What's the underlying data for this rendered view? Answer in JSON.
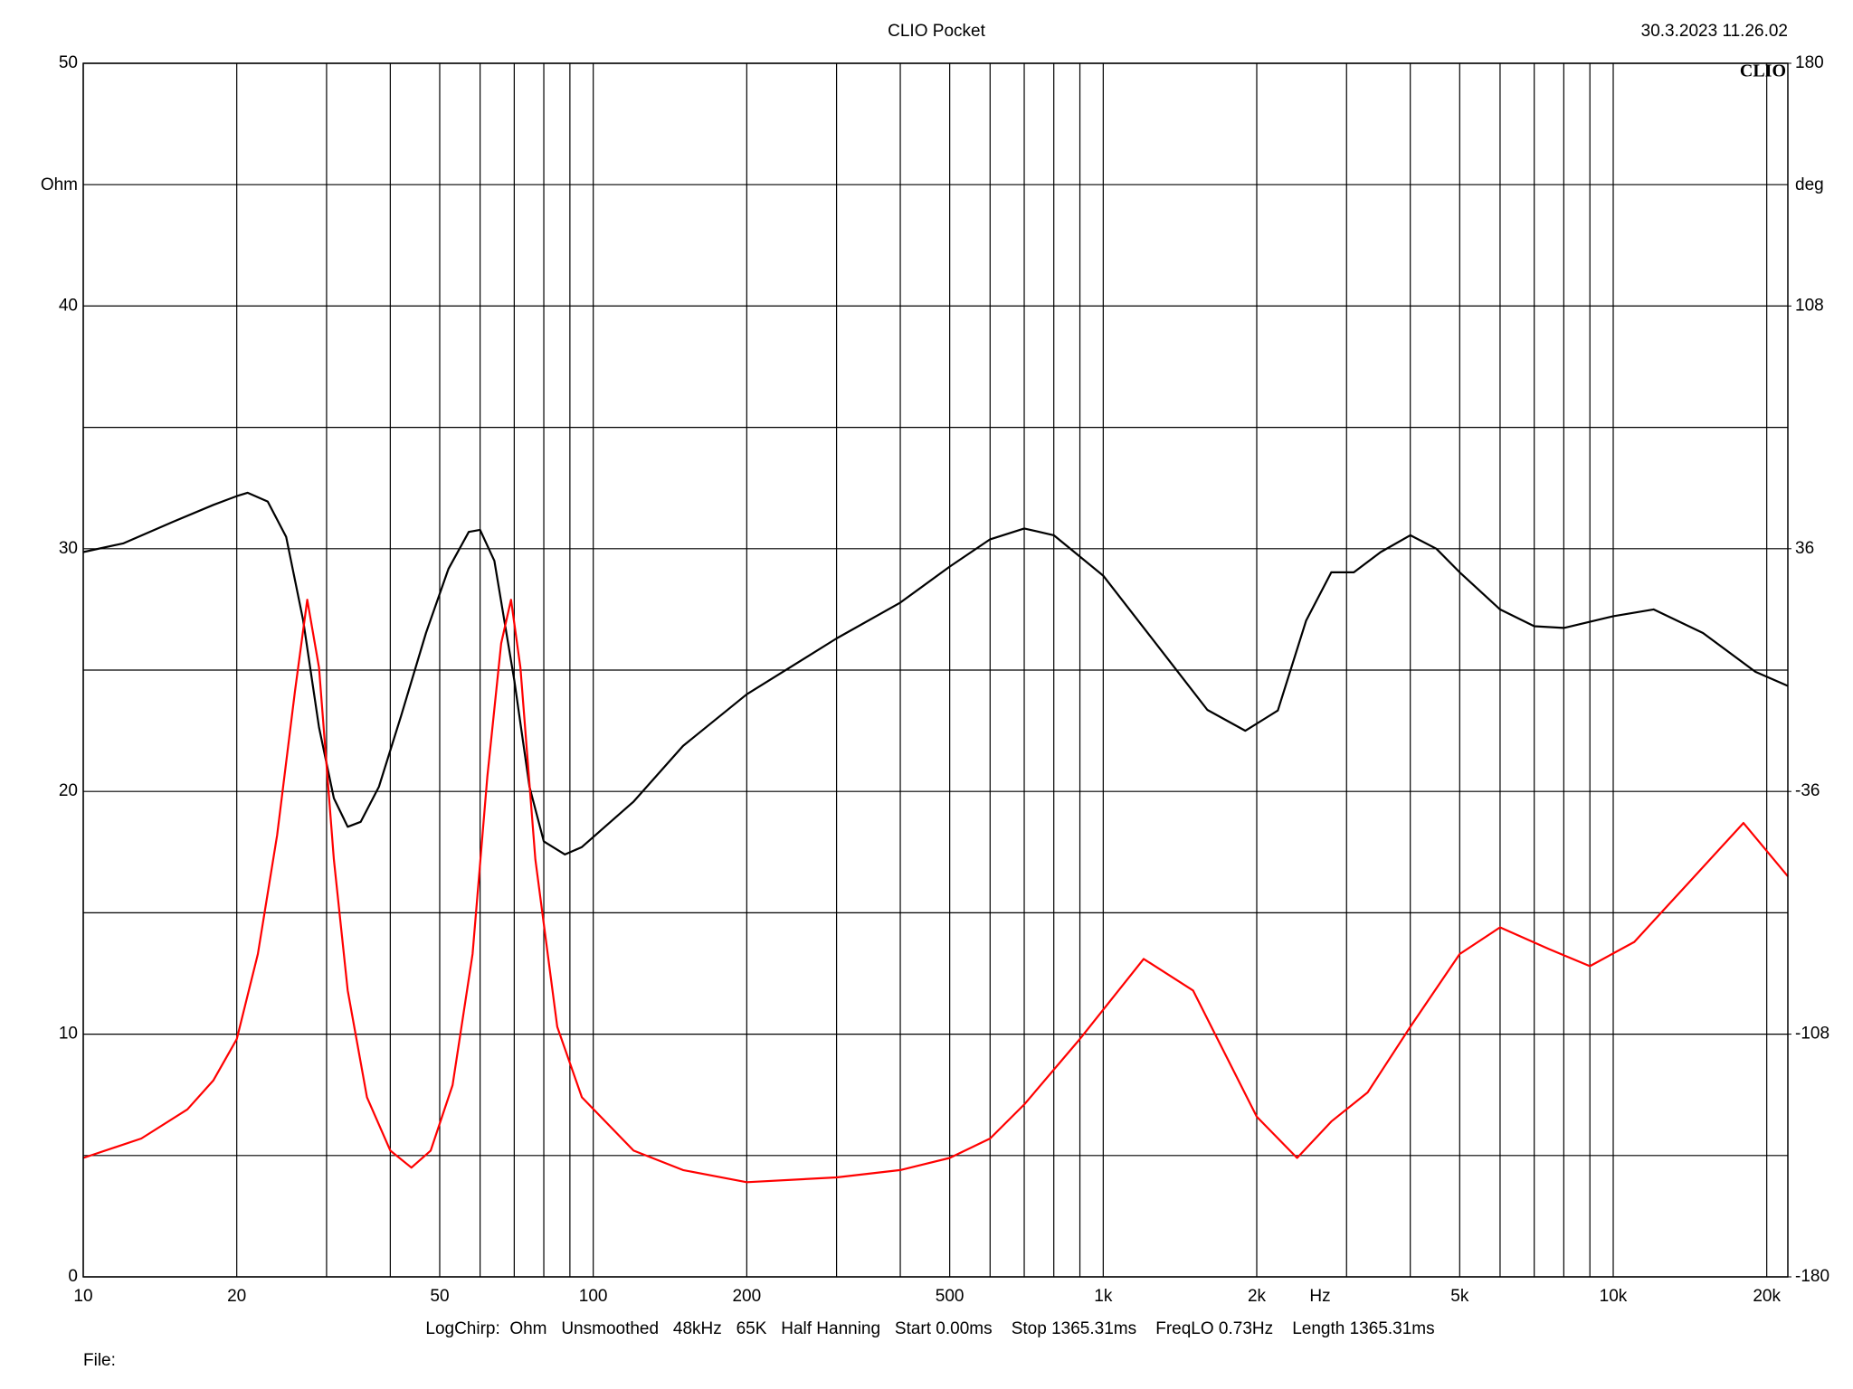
{
  "chart_data": {
    "type": "line",
    "title": "CLIO Pocket",
    "timestamp": "30.3.2023 11.26.02",
    "logo": "CLIO",
    "y_label": "Ohm",
    "y2_label": "deg",
    "x_label": "Hz",
    "footer": "LogChirp:  Ohm   Unsmoothed   48kHz   65K   Half Hanning   Start 0.00ms    Stop 1365.31ms    FreqLO 0.73Hz    Length 1365.31ms",
    "file_label": "File:",
    "xlog": true,
    "xlim": [
      10,
      22000
    ],
    "xticks": [
      10,
      20,
      50,
      100,
      200,
      500,
      {
        "value": 1000,
        "label": "1k"
      },
      {
        "value": 2000,
        "label": "2k"
      },
      {
        "value": 5000,
        "label": "5k"
      },
      {
        "value": 10000,
        "label": "10k"
      },
      {
        "value": 20000,
        "label": "20k"
      }
    ],
    "x_minor_ticks": [
      30,
      40,
      60,
      70,
      80,
      90,
      300,
      400,
      600,
      700,
      800,
      900,
      3000,
      4000,
      6000,
      7000,
      8000,
      9000
    ],
    "ylim": [
      0,
      50
    ],
    "yticks": [
      0,
      10,
      20,
      30,
      40,
      50
    ],
    "y_minor_ticks": [
      5,
      15,
      25,
      35,
      45
    ],
    "y2lim": [
      -180,
      180
    ],
    "y2ticks": [
      -180,
      -108,
      -36,
      36,
      108,
      180
    ],
    "grid": true,
    "series": [
      {
        "color": "#000000",
        "axis": "y2",
        "x": [
          10,
          12,
          15,
          18,
          20,
          21,
          23,
          25,
          27,
          29,
          31,
          33,
          35,
          38,
          42,
          47,
          52,
          57,
          60,
          64,
          70,
          75,
          80,
          88,
          95,
          120,
          150,
          200,
          300,
          400,
          500,
          600,
          700,
          800,
          1000,
          1300,
          1600,
          1900,
          2200,
          2500,
          2800,
          3100,
          3500,
          4000,
          4500,
          5000,
          6000,
          7000,
          8000,
          10000,
          12000,
          15000,
          19000,
          22000
        ],
        "values": [
          35,
          37.6,
          44,
          49,
          51.6,
          52.6,
          50,
          39.5,
          14.7,
          -17,
          -38,
          -46.5,
          -45,
          -34.6,
          -13.6,
          11,
          30,
          41,
          41.6,
          32.4,
          -3,
          -34.6,
          -50.8,
          -54.7,
          -52.5,
          -39,
          -22.5,
          -7.2,
          9.4,
          20,
          30.7,
          38.8,
          42,
          40,
          28,
          5.8,
          -11.8,
          -18,
          -12,
          14.7,
          29,
          29,
          35,
          40,
          36,
          29,
          18,
          13,
          12.5,
          16,
          18,
          11,
          -0.5,
          -4.7
        ]
      },
      {
        "color": "#ff0000",
        "x": [
          10,
          13,
          16,
          18,
          20,
          22,
          24,
          26,
          27.5,
          29,
          31,
          33,
          36,
          40,
          44,
          48,
          53,
          58,
          62,
          66,
          69,
          72,
          77,
          85,
          95,
          120,
          150,
          200,
          300,
          400,
          500,
          600,
          700,
          900,
          1200,
          1500,
          2000,
          2400,
          2800,
          3300,
          4000,
          5000,
          6000,
          7500,
          9000,
          11000,
          14000,
          18000,
          22000
        ],
        "values": [
          4.9,
          5.7,
          6.9,
          8.1,
          9.8,
          13.3,
          18.2,
          24.1,
          27.9,
          25.1,
          17.2,
          11.8,
          7.4,
          5.2,
          4.5,
          5.2,
          7.9,
          13.3,
          20.6,
          26.1,
          27.9,
          25.1,
          17.2,
          10.3,
          7.4,
          5.2,
          4.4,
          3.9,
          4.1,
          4.4,
          4.9,
          5.7,
          7.1,
          9.8,
          13.1,
          11.8,
          6.6,
          4.9,
          6.4,
          7.6,
          10.3,
          13.3,
          14.4,
          13.5,
          12.8,
          13.8,
          16.2,
          18.7,
          16.5
        ]
      }
    ]
  }
}
